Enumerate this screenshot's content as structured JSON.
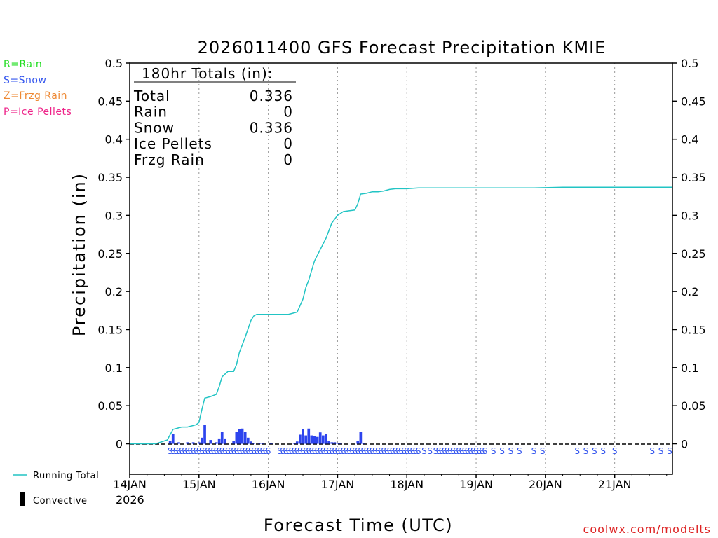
{
  "chart_data": {
    "type": "bar+line",
    "title": "2026011400 GFS Forecast Precipitation KMIE",
    "xlabel": "Forecast Time (UTC)",
    "ylabel": "Precipitation (in)",
    "ylim": [
      -0.04,
      0.5
    ],
    "xlim_hours": [
      0,
      188
    ],
    "yticks": [
      0,
      0.05,
      0.1,
      0.15,
      0.2,
      0.25,
      0.3,
      0.35,
      0.4,
      0.45,
      0.5
    ],
    "ytick_labels": [
      "0",
      "0.05",
      "0.1",
      "0.15",
      "0.2",
      "0.25",
      "0.3",
      "0.35",
      "0.4",
      "0.45",
      "0.5"
    ],
    "xticks_hours": [
      0,
      24,
      48,
      72,
      96,
      120,
      144,
      168
    ],
    "xtick_labels": [
      "14JAN",
      "15JAN",
      "16JAN",
      "17JAN",
      "18JAN",
      "19JAN",
      "20JAN",
      "21JAN"
    ],
    "xtick_year": "2026",
    "ptype_legend": [
      {
        "text": "R=Rain",
        "color": "#22dd22"
      },
      {
        "text": "S=Snow",
        "color": "#3355ee"
      },
      {
        "text": "Z=Frzg Rain",
        "color": "#ee8833"
      },
      {
        "text": "P=Ice Pellets",
        "color": "#ee2288"
      }
    ],
    "totals": {
      "header": "180hr Totals (in):",
      "rows": [
        {
          "label": "Total",
          "value": "0.336"
        },
        {
          "label": "Rain",
          "value": "0"
        },
        {
          "label": "Snow",
          "value": "0.336"
        },
        {
          "label": "Ice Pellets",
          "value": "0"
        },
        {
          "label": "Frzg Rain",
          "value": "0"
        }
      ]
    },
    "running_total": {
      "name": "Running Total",
      "color": "#22c4c4",
      "hours": [
        0,
        9,
        13,
        15,
        16,
        18,
        20,
        23,
        24,
        25,
        26,
        28,
        30,
        31,
        32,
        34,
        36,
        37,
        38,
        40,
        42,
        43,
        44,
        48,
        55,
        58,
        60,
        61,
        62,
        64,
        66,
        68,
        70,
        72,
        74,
        76,
        78,
        79,
        80,
        82,
        84,
        85,
        86,
        88,
        90,
        92,
        94,
        96,
        100,
        110,
        120,
        140,
        150,
        160,
        170,
        188
      ],
      "values": [
        0,
        0,
        0.005,
        0.019,
        0.02,
        0.022,
        0.022,
        0.025,
        0.028,
        0.045,
        0.06,
        0.062,
        0.065,
        0.075,
        0.088,
        0.095,
        0.095,
        0.104,
        0.12,
        0.14,
        0.162,
        0.168,
        0.17,
        0.17,
        0.17,
        0.173,
        0.19,
        0.205,
        0.215,
        0.24,
        0.255,
        0.27,
        0.29,
        0.3,
        0.305,
        0.306,
        0.307,
        0.315,
        0.328,
        0.329,
        0.331,
        0.331,
        0.331,
        0.332,
        0.334,
        0.335,
        0.335,
        0.335,
        0.336,
        0.336,
        0.336,
        0.336,
        0.337,
        0.337,
        0.337,
        0.337
      ]
    },
    "bars": {
      "name": "Snow",
      "color": "#2d44ee",
      "hours": [
        14,
        15,
        17,
        20,
        22,
        24,
        25,
        26,
        28,
        30,
        31,
        32,
        33,
        36,
        37,
        38,
        39,
        40,
        41,
        42,
        43,
        45,
        46,
        49,
        57,
        58,
        59,
        60,
        61,
        62,
        63,
        64,
        65,
        66,
        67,
        68,
        69,
        70,
        71,
        72,
        73,
        79,
        80,
        81
      ],
      "values": [
        0.004,
        0.013,
        0.002,
        0.002,
        0.002,
        0.002,
        0.008,
        0.025,
        0.005,
        0.002,
        0.007,
        0.016,
        0.007,
        0.004,
        0.016,
        0.019,
        0.02,
        0.016,
        0.008,
        0.003,
        0.001,
        0.001,
        0.001,
        0.001,
        0.001,
        0.003,
        0.012,
        0.019,
        0.011,
        0.02,
        0.011,
        0.01,
        0.009,
        0.015,
        0.011,
        0.013,
        0.004,
        0.002,
        0.002,
        0.001,
        0.001,
        0.004,
        0.016,
        0.001
      ]
    },
    "ptype_row": {
      "hours": [
        14,
        15,
        16,
        17,
        18,
        19,
        20,
        21,
        22,
        23,
        24,
        25,
        26,
        27,
        28,
        29,
        30,
        31,
        32,
        33,
        34,
        35,
        36,
        37,
        38,
        39,
        40,
        41,
        42,
        43,
        44,
        45,
        46,
        47,
        48,
        52,
        53,
        54,
        55,
        56,
        57,
        58,
        59,
        60,
        61,
        62,
        63,
        64,
        65,
        66,
        67,
        68,
        69,
        70,
        71,
        72,
        73,
        74,
        75,
        76,
        77,
        78,
        79,
        80,
        81,
        82,
        83,
        84,
        85,
        86,
        87,
        88,
        89,
        90,
        91,
        92,
        93,
        94,
        95,
        96,
        97,
        98,
        99,
        100,
        102,
        104,
        106,
        107,
        108,
        109,
        110,
        111,
        112,
        113,
        114,
        115,
        116,
        117,
        118,
        119,
        120,
        121,
        122,
        123,
        126,
        129,
        132,
        135,
        140,
        143,
        155,
        158,
        161,
        164,
        168,
        181,
        184,
        187
      ],
      "symbol": "S",
      "color": "#3355ee"
    },
    "legend": [
      {
        "name": "Running Total"
      },
      {
        "name": "Convective"
      }
    ],
    "credit": "coolwx.com/modelts"
  }
}
